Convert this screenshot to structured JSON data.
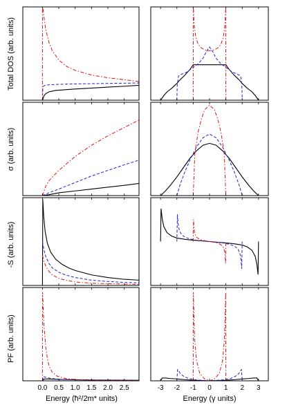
{
  "figure": {
    "left_column_xlabel": "Energy (ħ²/2m* units)",
    "right_column_xlabel": "Energy (γ units)",
    "row_ylabels": [
      "Total DOS (arb. units)",
      "σ (arb. units)",
      "-S (arb. units)",
      "PF (arb. units)"
    ]
  },
  "styles": {
    "black": {
      "color": "#000000",
      "dash": "none"
    },
    "blue": {
      "color": "#1f1fd0",
      "dash": "dashed"
    },
    "red": {
      "color": "#e01010",
      "dash": "dash-dot"
    }
  },
  "chart_data": [
    {
      "type": "line",
      "panel": "left-1",
      "ylabel": "Total DOS (arb. units)",
      "xlim": [
        -0.6,
        2.95
      ],
      "ylim": [
        0,
        1
      ],
      "xticks": [
        0,
        0.5,
        1.0,
        1.5,
        2.0,
        2.5
      ],
      "show_tick_labels": false,
      "series": [
        {
          "style": "black",
          "x": [
            0,
            0.05,
            0.1,
            0.2,
            0.4,
            0.6,
            0.8,
            1.0,
            1.5,
            2.0,
            2.5,
            2.95
          ],
          "y": [
            0.0,
            0.05,
            0.07,
            0.09,
            0.105,
            0.11,
            0.115,
            0.12,
            0.13,
            0.14,
            0.15,
            0.16
          ]
        },
        {
          "style": "blue",
          "x": [
            0,
            0.01,
            0.03,
            0.08,
            0.2,
            0.5,
            1.0,
            2.0,
            2.95
          ],
          "y": [
            0.0,
            0.12,
            0.15,
            0.16,
            0.165,
            0.17,
            0.175,
            0.18,
            0.185
          ]
        },
        {
          "style": "red",
          "x": [
            0,
            0.001,
            0.02,
            0.05,
            0.1,
            0.2,
            0.3,
            0.5,
            0.75,
            1.0,
            1.5,
            2.0,
            2.5,
            2.95
          ],
          "y": [
            0.0,
            1.0,
            0.98,
            0.88,
            0.76,
            0.62,
            0.53,
            0.43,
            0.36,
            0.32,
            0.27,
            0.24,
            0.22,
            0.2
          ]
        }
      ]
    },
    {
      "type": "line",
      "panel": "right-1",
      "xlim": [
        -3.6,
        3.6
      ],
      "ylim": [
        0,
        1
      ],
      "xticks": [
        -3,
        -2,
        -1,
        0,
        1,
        2,
        3
      ],
      "show_tick_labels": false,
      "series": [
        {
          "style": "black",
          "x": [
            -3,
            -2.8,
            -2.6,
            -2.3,
            -2.0,
            -1.8,
            -1.5,
            -1.2,
            -1.0,
            -0.5,
            0,
            0.5,
            1.0,
            1.2,
            1.5,
            1.8,
            2.0,
            2.3,
            2.6,
            2.8,
            3
          ],
          "y": [
            0.0,
            0.05,
            0.09,
            0.13,
            0.18,
            0.22,
            0.27,
            0.33,
            0.38,
            0.38,
            0.38,
            0.38,
            0.38,
            0.33,
            0.27,
            0.22,
            0.18,
            0.13,
            0.09,
            0.05,
            0.0
          ]
        },
        {
          "style": "blue",
          "x": [
            -2,
            -1.98,
            -1.9,
            -1.7,
            -1.4,
            -1.1,
            -0.7,
            -0.4,
            -0.2,
            0,
            0.2,
            0.4,
            0.7,
            1.1,
            1.4,
            1.7,
            1.9,
            1.98,
            2
          ],
          "y": [
            0.0,
            0.16,
            0.26,
            0.28,
            0.3,
            0.34,
            0.39,
            0.45,
            0.52,
            0.57,
            0.52,
            0.45,
            0.39,
            0.34,
            0.3,
            0.28,
            0.26,
            0.16,
            0.0
          ]
        },
        {
          "style": "red",
          "x": [
            -1,
            -0.99,
            -0.95,
            -0.85,
            -0.7,
            -0.5,
            -0.3,
            0,
            0.3,
            0.5,
            0.7,
            0.85,
            0.95,
            0.99,
            1
          ],
          "y": [
            0.0,
            1.0,
            0.82,
            0.68,
            0.6,
            0.56,
            0.54,
            0.53,
            0.54,
            0.56,
            0.6,
            0.68,
            0.82,
            1.0,
            0.0
          ]
        }
      ]
    },
    {
      "type": "line",
      "panel": "left-2",
      "ylabel": "σ (arb. units)",
      "xlim": [
        -0.6,
        2.95
      ],
      "ylim": [
        0,
        1
      ],
      "xticks": [
        0,
        0.5,
        1.0,
        1.5,
        2.0,
        2.5
      ],
      "show_tick_labels": false,
      "series": [
        {
          "style": "black",
          "x": [
            0,
            0.2,
            0.5,
            1.0,
            1.5,
            2.0,
            2.5,
            2.95
          ],
          "y": [
            0.0,
            0.01,
            0.03,
            0.05,
            0.07,
            0.09,
            0.11,
            0.13
          ]
        },
        {
          "style": "blue",
          "x": [
            0,
            0.2,
            0.5,
            1.0,
            1.5,
            2.0,
            2.5,
            2.95
          ],
          "y": [
            0.0,
            0.03,
            0.07,
            0.14,
            0.21,
            0.27,
            0.33,
            0.38
          ]
        },
        {
          "style": "red",
          "x": [
            0,
            0.1,
            0.2,
            0.5,
            1.0,
            1.5,
            2.0,
            2.5,
            2.95
          ],
          "y": [
            0.0,
            0.1,
            0.16,
            0.27,
            0.42,
            0.54,
            0.64,
            0.73,
            0.81
          ]
        }
      ]
    },
    {
      "type": "line",
      "panel": "right-2",
      "xlim": [
        -3.6,
        3.6
      ],
      "ylim": [
        0,
        1
      ],
      "xticks": [
        -3,
        -2,
        -1,
        0,
        1,
        2,
        3
      ],
      "show_tick_labels": false,
      "series": [
        {
          "style": "black",
          "x": [
            -3,
            -2.7,
            -2.4,
            -2.0,
            -1.6,
            -1.2,
            -0.8,
            -0.4,
            0,
            0.4,
            0.8,
            1.2,
            1.6,
            2.0,
            2.4,
            2.7,
            3
          ],
          "y": [
            0.0,
            0.05,
            0.11,
            0.2,
            0.3,
            0.4,
            0.48,
            0.54,
            0.56,
            0.54,
            0.48,
            0.4,
            0.3,
            0.2,
            0.11,
            0.05,
            0.0
          ]
        },
        {
          "style": "blue",
          "x": [
            -2,
            -1.8,
            -1.5,
            -1.2,
            -0.8,
            -0.4,
            0,
            0.4,
            0.8,
            1.2,
            1.5,
            1.8,
            2
          ],
          "y": [
            0.0,
            0.12,
            0.26,
            0.38,
            0.52,
            0.62,
            0.66,
            0.62,
            0.52,
            0.38,
            0.26,
            0.12,
            0.0
          ]
        },
        {
          "style": "red",
          "x": [
            -1,
            -0.9,
            -0.7,
            -0.5,
            -0.3,
            0,
            0.3,
            0.5,
            0.7,
            0.9,
            1
          ],
          "y": [
            0.0,
            0.45,
            0.68,
            0.82,
            0.92,
            0.97,
            0.92,
            0.82,
            0.68,
            0.45,
            0.0
          ]
        }
      ]
    },
    {
      "type": "line",
      "panel": "left-3",
      "ylabel": "-S (arb. units)",
      "xlim": [
        -0.6,
        2.95
      ],
      "ylim": [
        0,
        1
      ],
      "xticks": [
        0,
        0.5,
        1.0,
        1.5,
        2.0,
        2.5
      ],
      "show_tick_labels": false,
      "series": [
        {
          "style": "black",
          "x": [
            -0.6,
            -0.001,
            0,
            0.01,
            0.04,
            0.08,
            0.15,
            0.25,
            0.4,
            0.6,
            0.8,
            1.0,
            1.5,
            2.0,
            2.5,
            2.95
          ],
          "y": [
            0.0,
            0.0,
            0.0,
            0.98,
            0.78,
            0.62,
            0.48,
            0.38,
            0.3,
            0.24,
            0.2,
            0.17,
            0.12,
            0.09,
            0.07,
            0.06
          ]
        },
        {
          "style": "blue",
          "x": [
            0,
            0.05,
            0.1,
            0.2,
            0.3,
            0.5,
            0.7,
            1.0,
            1.5,
            2.0,
            2.5,
            2.95
          ],
          "y": [
            0.5,
            0.4,
            0.33,
            0.25,
            0.2,
            0.15,
            0.12,
            0.09,
            0.06,
            0.045,
            0.035,
            0.03
          ]
        },
        {
          "style": "red",
          "x": [
            0,
            0.05,
            0.1,
            0.2,
            0.3,
            0.5,
            0.7,
            1.0,
            1.5,
            2.0,
            2.5,
            2.95
          ],
          "y": [
            0.34,
            0.27,
            0.22,
            0.16,
            0.12,
            0.08,
            0.06,
            0.04,
            0.025,
            0.02,
            0.015,
            0.012
          ]
        }
      ]
    },
    {
      "type": "line",
      "panel": "right-3",
      "xlim": [
        -3.6,
        3.6
      ],
      "ylim": [
        -1,
        1
      ],
      "xticks": [
        -3,
        -2,
        -1,
        0,
        1,
        2,
        3
      ],
      "show_tick_labels": false,
      "series": [
        {
          "style": "black",
          "x": [
            -3,
            -2.97,
            -2.9,
            -2.8,
            -2.6,
            -2.3,
            -2.0,
            -1.5,
            -1.0,
            0,
            1.0,
            1.5,
            2.0,
            2.3,
            2.6,
            2.8,
            2.9,
            2.97,
            3
          ],
          "y": [
            0.0,
            0.75,
            0.52,
            0.34,
            0.2,
            0.12,
            0.08,
            0.05,
            0.03,
            0.0,
            -0.03,
            -0.05,
            -0.08,
            -0.12,
            -0.2,
            -0.34,
            -0.52,
            -0.75,
            0.0
          ]
        },
        {
          "style": "blue",
          "x": [
            -2,
            -1.97,
            -1.92,
            -1.85,
            -1.7,
            -1.5,
            -1.2,
            -0.8,
            0,
            0.8,
            1.2,
            1.5,
            1.7,
            1.85,
            1.92,
            1.97,
            2
          ],
          "y": [
            0.0,
            0.62,
            0.4,
            0.25,
            0.15,
            0.1,
            0.06,
            0.03,
            0.0,
            -0.03,
            -0.06,
            -0.1,
            -0.15,
            -0.25,
            -0.4,
            -0.62,
            0.0
          ]
        },
        {
          "style": "red",
          "x": [
            -1,
            -0.98,
            -0.95,
            -0.9,
            -0.8,
            -0.6,
            -0.3,
            0,
            0.3,
            0.6,
            0.8,
            0.9,
            0.95,
            0.98,
            1
          ],
          "y": [
            0.0,
            0.5,
            0.3,
            0.18,
            0.1,
            0.05,
            0.02,
            0.0,
            -0.02,
            -0.05,
            -0.1,
            -0.18,
            -0.3,
            -0.5,
            0.0
          ]
        }
      ]
    },
    {
      "type": "line",
      "panel": "left-4",
      "ylabel": "PF (arb. units)",
      "xlim": [
        -0.6,
        2.95
      ],
      "ylim": [
        0,
        1
      ],
      "xticks": [
        0,
        0.5,
        1.0,
        1.5,
        2.0,
        2.5
      ],
      "xtick_labels": [
        "0.0",
        "0.5",
        "1.0",
        "1.5",
        "2.0",
        "2.5"
      ],
      "xlabel": "Energy (ħ²/2m* units)",
      "series": [
        {
          "style": "black",
          "x": [
            0,
            0.05,
            0.15,
            0.3,
            0.6,
            1.0,
            1.5,
            2.0,
            2.5,
            2.95
          ],
          "y": [
            0.0,
            0.02,
            0.02,
            0.018,
            0.014,
            0.011,
            0.009,
            0.008,
            0.007,
            0.006
          ]
        },
        {
          "style": "blue",
          "x": [
            0,
            0.03,
            0.08,
            0.15,
            0.3,
            0.6,
            1.0,
            1.5,
            2.0,
            2.95
          ],
          "y": [
            0.0,
            0.045,
            0.04,
            0.033,
            0.024,
            0.015,
            0.01,
            0.008,
            0.007,
            0.006
          ]
        },
        {
          "style": "red",
          "x": [
            0,
            0.003,
            0.02,
            0.05,
            0.1,
            0.15,
            0.2,
            0.3,
            0.45,
            0.7,
            1.0,
            1.5,
            2.0,
            2.95
          ],
          "y": [
            0.0,
            0.95,
            0.8,
            0.58,
            0.36,
            0.24,
            0.16,
            0.09,
            0.05,
            0.025,
            0.014,
            0.008,
            0.005,
            0.004
          ]
        }
      ]
    },
    {
      "type": "line",
      "panel": "right-4",
      "xlim": [
        -3.6,
        3.6
      ],
      "ylim": [
        0,
        1
      ],
      "xticks": [
        -3,
        -2,
        -1,
        0,
        1,
        2,
        3
      ],
      "xtick_labels": [
        "-3",
        "-2",
        "-1",
        "0",
        "1",
        "2",
        "3"
      ],
      "xlabel": "Energy (γ units)",
      "series": [
        {
          "style": "black",
          "x": [
            -3,
            -2.9,
            -2.7,
            -2.4,
            -2.0,
            -1.5,
            -1.0,
            0,
            1.0,
            1.5,
            2.0,
            2.4,
            2.7,
            2.9,
            3
          ],
          "y": [
            0.0,
            0.03,
            0.03,
            0.025,
            0.02,
            0.012,
            0.006,
            0.0,
            0.006,
            0.012,
            0.02,
            0.025,
            0.03,
            0.03,
            0.0
          ]
        },
        {
          "style": "blue",
          "x": [
            -2,
            -1.96,
            -1.9,
            -1.8,
            -1.6,
            -1.3,
            -0.8,
            0,
            0.8,
            1.3,
            1.6,
            1.8,
            1.9,
            1.96,
            2
          ],
          "y": [
            0.0,
            0.12,
            0.11,
            0.08,
            0.05,
            0.025,
            0.01,
            0.0,
            0.01,
            0.025,
            0.05,
            0.08,
            0.11,
            0.12,
            0.0
          ]
        },
        {
          "style": "red",
          "x": [
            -1,
            -0.99,
            -0.97,
            -0.94,
            -0.9,
            -0.8,
            -0.6,
            -0.3,
            0,
            0.3,
            0.6,
            0.8,
            0.9,
            0.94,
            0.97,
            0.99,
            1
          ],
          "y": [
            0.0,
            0.95,
            0.8,
            0.6,
            0.42,
            0.22,
            0.08,
            0.02,
            0.0,
            0.02,
            0.08,
            0.22,
            0.42,
            0.6,
            0.8,
            0.95,
            0.0
          ]
        }
      ]
    }
  ]
}
